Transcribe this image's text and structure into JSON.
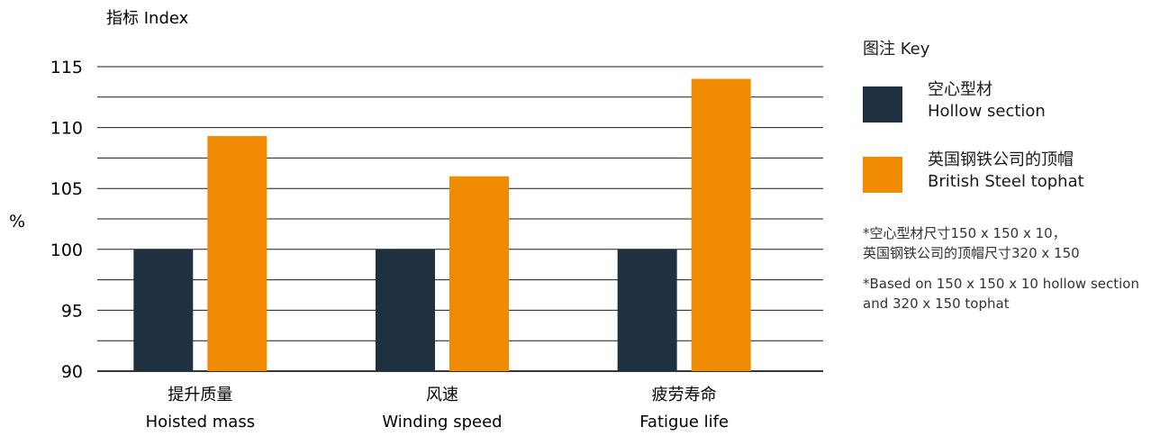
{
  "chart_data": {
    "type": "bar",
    "ylabel_top": "指标  Index",
    "ylabel": "%",
    "ylim": [
      90,
      115
    ],
    "yticks": [
      "115",
      "110",
      "105",
      "100",
      "95",
      "90"
    ],
    "categories": [
      {
        "cn": "提升质量",
        "en": "Hoisted mass"
      },
      {
        "cn": "风速",
        "en": "Winding speed"
      },
      {
        "cn": "疲劳寿命",
        "en": "Fatigue life"
      }
    ],
    "series": [
      {
        "name_cn": "空心型材",
        "name_en": "Hollow section",
        "color": "#1f3140",
        "values": [
          100,
          100,
          100
        ]
      },
      {
        "name_cn": "英国钢铁公司的顶帽",
        "name_en": "British Steel tophat",
        "color": "#f08a00",
        "values": [
          109.3,
          106.0,
          114.0
        ]
      }
    ],
    "grid": "horizontal",
    "legend_position": "right"
  },
  "legend": {
    "title": "图注  Key",
    "items": [
      {
        "cn": "空心型材",
        "en": "Hollow section",
        "color": "#1f3140"
      },
      {
        "cn": "英国钢铁公司的顶帽",
        "en": "British Steel tophat",
        "color": "#f08a00"
      }
    ]
  },
  "notes": {
    "cn_line1": "*空心型材尺寸150 x 150 x 10，",
    "cn_line2": "英国钢铁公司的顶帽尺寸320 x 150",
    "en": "*Based on 150 x 150 x 10 hollow section and 320 x 150 tophat"
  }
}
